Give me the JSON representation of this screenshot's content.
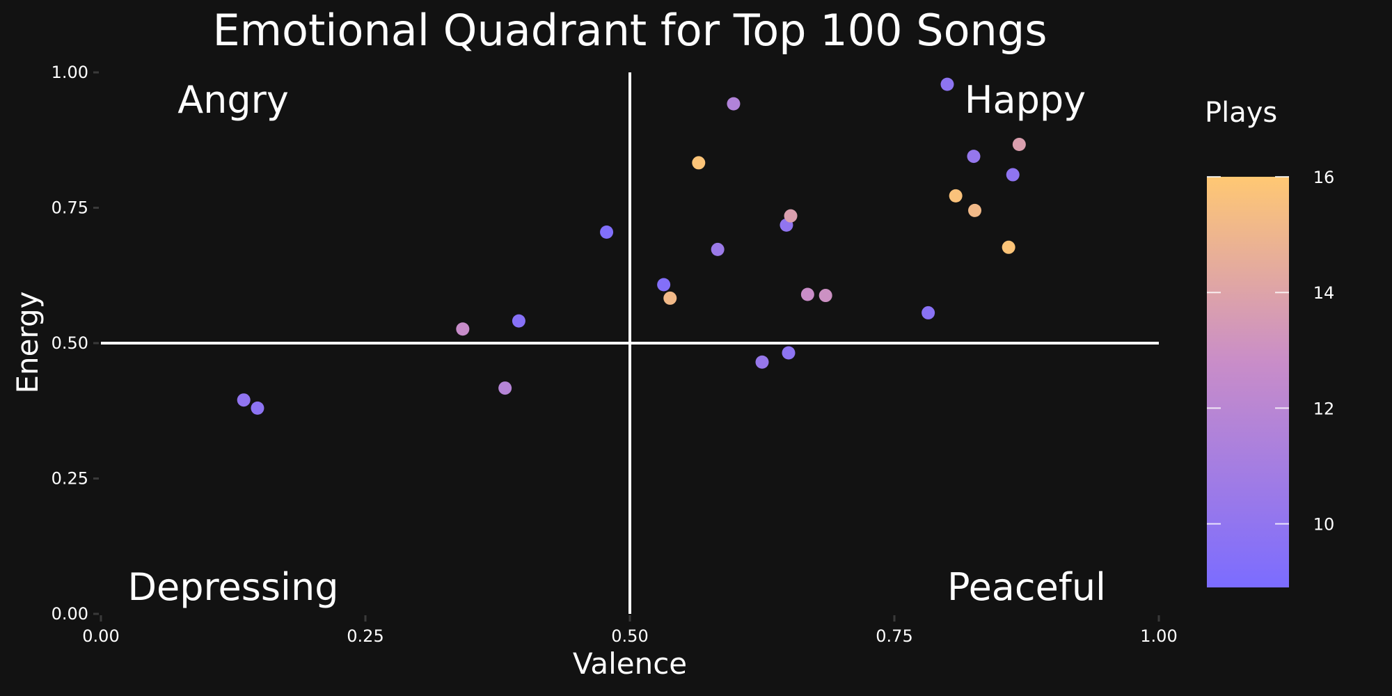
{
  "chart_data": {
    "type": "scatter",
    "title": "Emotional Quadrant for Top 100 Songs",
    "xlabel": "Valence",
    "ylabel": "Energy",
    "xlim": [
      0,
      1
    ],
    "ylim": [
      0,
      1
    ],
    "x_ticks": [
      "0.00",
      "0.25",
      "0.50",
      "0.75",
      "1.00"
    ],
    "y_ticks": [
      "0.00",
      "0.25",
      "0.50",
      "0.75",
      "1.00"
    ],
    "grid": false,
    "reference_lines": {
      "x": 0.5,
      "y": 0.5
    },
    "quadrant_labels": {
      "top_left": "Angry",
      "top_right": "Happy",
      "bottom_left": "Depressing",
      "bottom_right": "Peaceful"
    },
    "color_scale": {
      "title": "Plays",
      "low_color": "#7b6cff",
      "mid_color": "#c98dc8",
      "high_color": "#ffc873",
      "min": 8.9,
      "max": 16,
      "ticks": [
        "10",
        "12",
        "14",
        "16"
      ]
    },
    "points": [
      {
        "x": 0.135,
        "y": 0.395,
        "plays": 10.0
      },
      {
        "x": 0.148,
        "y": 0.38,
        "plays": 9.8
      },
      {
        "x": 0.342,
        "y": 0.526,
        "plays": 12.7
      },
      {
        "x": 0.395,
        "y": 0.541,
        "plays": 9.5
      },
      {
        "x": 0.382,
        "y": 0.417,
        "plays": 11.8
      },
      {
        "x": 0.478,
        "y": 0.705,
        "plays": 9.2
      },
      {
        "x": 0.532,
        "y": 0.608,
        "plays": 9.3
      },
      {
        "x": 0.538,
        "y": 0.583,
        "plays": 15.2
      },
      {
        "x": 0.565,
        "y": 0.833,
        "plays": 15.8
      },
      {
        "x": 0.583,
        "y": 0.673,
        "plays": 10.5
      },
      {
        "x": 0.598,
        "y": 0.942,
        "plays": 11.6
      },
      {
        "x": 0.625,
        "y": 0.465,
        "plays": 10.3
      },
      {
        "x": 0.648,
        "y": 0.718,
        "plays": 10.0
      },
      {
        "x": 0.65,
        "y": 0.482,
        "plays": 9.8
      },
      {
        "x": 0.652,
        "y": 0.735,
        "plays": 13.8
      },
      {
        "x": 0.668,
        "y": 0.59,
        "plays": 12.8
      },
      {
        "x": 0.685,
        "y": 0.588,
        "plays": 13.0
      },
      {
        "x": 0.782,
        "y": 0.556,
        "plays": 9.6
      },
      {
        "x": 0.8,
        "y": 0.978,
        "plays": 9.8
      },
      {
        "x": 0.808,
        "y": 0.772,
        "plays": 15.7
      },
      {
        "x": 0.825,
        "y": 0.845,
        "plays": 10.2
      },
      {
        "x": 0.826,
        "y": 0.745,
        "plays": 15.2
      },
      {
        "x": 0.858,
        "y": 0.677,
        "plays": 15.8
      },
      {
        "x": 0.862,
        "y": 0.811,
        "plays": 9.9
      },
      {
        "x": 0.868,
        "y": 0.867,
        "plays": 13.8
      }
    ]
  }
}
